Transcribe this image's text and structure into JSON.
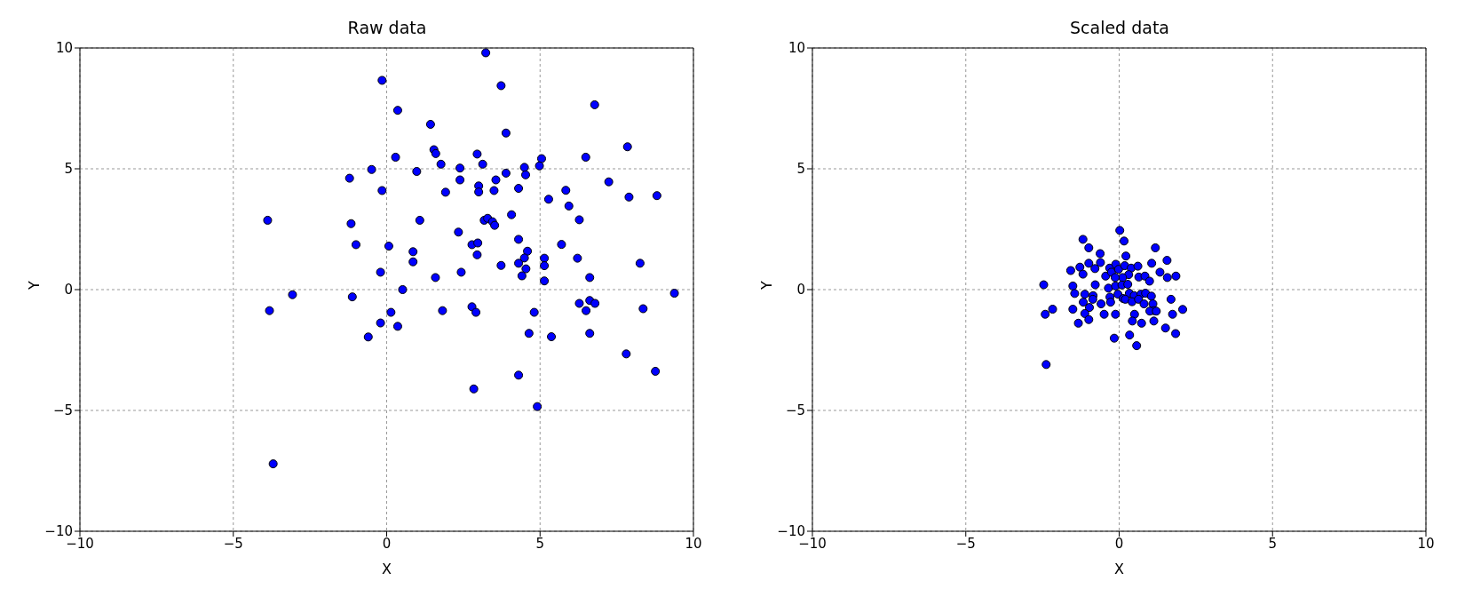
{
  "chart_data": [
    {
      "type": "scatter",
      "title": "Raw data",
      "xlabel": "X",
      "ylabel": "Y",
      "color": "#0000ff",
      "marker": "circle",
      "grid": true,
      "xlim": [
        -10,
        10
      ],
      "ylim": [
        -10,
        10
      ],
      "xticks": [
        -10,
        -5,
        0,
        5,
        10
      ],
      "yticks": [
        -10,
        -5,
        0,
        5,
        10
      ],
      "x": [
        3.23,
        -0.15,
        3.73,
        0.36,
        1.43,
        3.89,
        1.54,
        1.6,
        1.77,
        0.29,
        -0.49,
        -1.21,
        -0.15,
        0.98,
        2.39,
        2.39,
        2.95,
        3.13,
        3.0,
        3.0,
        1.92,
        3.5,
        3.56,
        3.89,
        -3.88,
        -1.16,
        1.08,
        -1.0,
        0.07,
        0.86,
        0.86,
        -0.2,
        1.59,
        2.43,
        2.34,
        2.78,
        2.97,
        2.95,
        3.18,
        3.29,
        3.45,
        3.52,
        3.73,
        0.52,
        -3.07,
        -1.12,
        -3.82,
        0.14,
        -0.2,
        0.36,
        -0.6,
        1.82,
        2.78,
        2.91,
        2.84,
        -3.7,
        6.78,
        7.85,
        6.49,
        5.05,
        4.98,
        4.49,
        4.53,
        4.3,
        7.24,
        5.84,
        5.28,
        5.94,
        7.9,
        8.81,
        4.07,
        6.28,
        4.3,
        5.7,
        4.59,
        4.49,
        4.3,
        4.54,
        4.41,
        5.14,
        5.14,
        5.14,
        6.22,
        8.26,
        6.62,
        9.38,
        6.28,
        6.62,
        6.79,
        6.5,
        8.36,
        4.81,
        4.64,
        5.37,
        6.62,
        7.81,
        8.76,
        4.3,
        4.91
      ],
      "values": [
        9.8,
        8.66,
        8.44,
        7.42,
        6.84,
        6.48,
        5.79,
        5.63,
        5.19,
        5.48,
        4.97,
        4.61,
        4.1,
        4.89,
        5.03,
        4.54,
        5.61,
        5.19,
        4.29,
        4.04,
        4.03,
        4.1,
        4.54,
        4.82,
        2.87,
        2.73,
        2.87,
        1.86,
        1.8,
        1.57,
        1.15,
        0.72,
        0.5,
        0.72,
        2.38,
        1.86,
        1.93,
        1.44,
        2.87,
        2.95,
        2.81,
        2.66,
        1.0,
        0.0,
        -0.21,
        -0.3,
        -0.87,
        -0.94,
        -1.38,
        -1.52,
        -1.96,
        -0.87,
        -0.71,
        -0.94,
        -4.11,
        -7.21,
        7.65,
        5.91,
        5.48,
        5.42,
        5.12,
        5.06,
        4.75,
        4.19,
        4.46,
        4.11,
        3.74,
        3.46,
        3.83,
        3.89,
        3.1,
        2.89,
        2.08,
        1.87,
        1.59,
        1.31,
        1.09,
        0.86,
        0.57,
        1.3,
        0.99,
        0.36,
        1.3,
        1.09,
        0.5,
        -0.15,
        -0.57,
        -0.45,
        -0.57,
        -0.87,
        -0.79,
        -0.94,
        -1.81,
        -1.95,
        -1.81,
        -2.66,
        -3.38,
        -3.54,
        -4.84
      ]
    },
    {
      "type": "scatter",
      "title": "Scaled data",
      "xlabel": "X",
      "ylabel": "Y",
      "color": "#0000ff",
      "marker": "circle",
      "grid": true,
      "xlim": [
        -10,
        10
      ],
      "ylim": [
        -10,
        10
      ],
      "xticks": [
        -10,
        -5,
        0,
        5,
        10
      ],
      "yticks": [
        -10,
        -5,
        0,
        5,
        10
      ],
      "x": [
        0.02,
        0.16,
        -1.18,
        -0.99,
        1.18,
        -0.62,
        0.22,
        1.56,
        1.06,
        -1.58,
        -1.28,
        -0.99,
        -0.61,
        -1.18,
        -0.79,
        -0.31,
        -0.11,
        -0.44,
        -0.25,
        -0.02,
        0.18,
        0.39,
        0.61,
        0.31,
        0.11,
        -0.13,
        0.64,
        0.84,
        0.99,
        1.33,
        1.57,
        1.85,
        -2.46,
        -1.51,
        -1.45,
        -0.78,
        -0.35,
        -0.12,
        0.09,
        0.28,
        -0.04,
        -0.3,
        0.13,
        0.33,
        0.49,
        0.71,
        0.86,
        1.05,
        -1.12,
        -0.85,
        -1.17,
        -0.86,
        -0.59,
        -0.28,
        0.2,
        0.42,
        0.63,
        0.81,
        1.1,
        1.13,
        1.0,
        1.21,
        1.69,
        -2.41,
        -2.17,
        -1.51,
        -0.97,
        -1.12,
        -0.49,
        -0.12,
        -0.99,
        -1.33,
        0.5,
        0.43,
        0.73,
        1.13,
        1.74,
        2.07,
        1.51,
        1.84,
        -0.16,
        0.34,
        0.57,
        -2.38
      ],
      "values": [
        2.45,
        2.01,
        2.08,
        1.73,
        1.73,
        1.49,
        1.39,
        1.21,
        1.09,
        0.79,
        0.93,
        1.09,
        1.12,
        0.64,
        0.87,
        0.89,
        1.05,
        0.56,
        0.72,
        0.84,
        0.99,
        0.89,
        0.97,
        0.62,
        0.5,
        0.5,
        0.52,
        0.56,
        0.35,
        0.72,
        0.5,
        0.56,
        0.2,
        0.15,
        -0.16,
        0.2,
        0.06,
        0.15,
        0.19,
        0.22,
        -0.19,
        -0.31,
        -0.37,
        -0.15,
        -0.25,
        -0.19,
        -0.15,
        -0.27,
        -0.19,
        -0.25,
        -0.52,
        -0.4,
        -0.59,
        -0.52,
        -0.4,
        -0.5,
        -0.4,
        -0.59,
        -0.59,
        -0.87,
        -0.89,
        -0.89,
        -0.4,
        -1.02,
        -0.81,
        -0.81,
        -0.74,
        -0.99,
        -1.02,
        -1.02,
        -1.24,
        -1.39,
        -1.02,
        -1.3,
        -1.39,
        -1.3,
        -1.02,
        -0.82,
        -1.59,
        -1.82,
        -2.01,
        -1.88,
        -2.32,
        -3.1
      ]
    }
  ]
}
